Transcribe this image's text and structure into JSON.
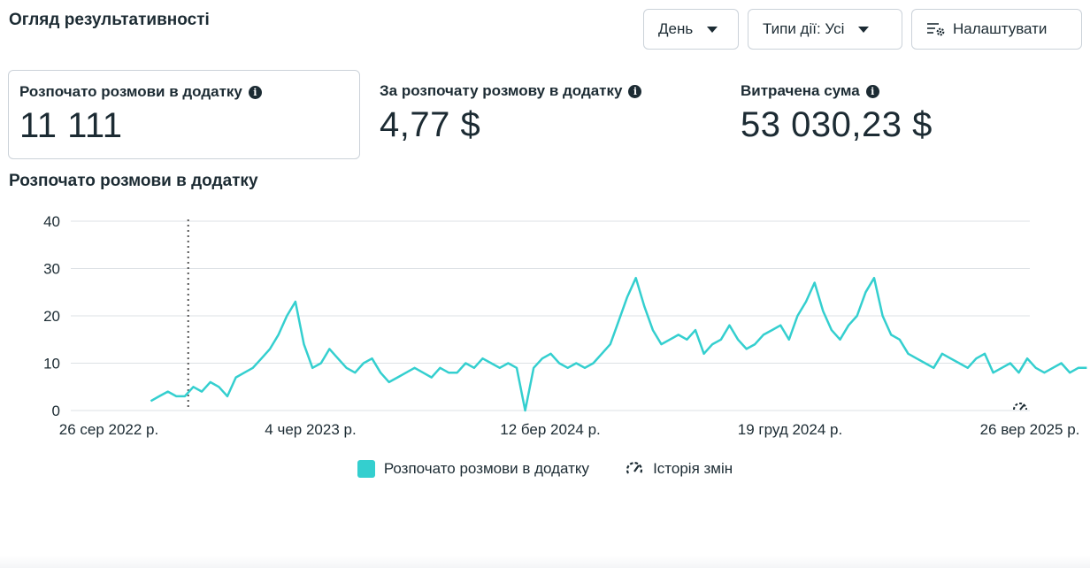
{
  "header": {
    "title": "Огляд результативності",
    "day_button": "День",
    "action_types_button": "Типи дії: Усі",
    "customize_button": "Налаштувати"
  },
  "metrics": [
    {
      "label": "Розпочато розмови в додатку",
      "value": "11 111"
    },
    {
      "label": "За розпочату розмову в додатку",
      "value": "4,77 $"
    },
    {
      "label": "Витрачена сума",
      "value": "53 030,23 $"
    }
  ],
  "chart_data": {
    "type": "line",
    "title": "Розпочато розмови в додатку",
    "x_ticks": [
      "26 сер 2022 р.",
      "4 чер 2023 р.",
      "12 бер 2024 р.",
      "19 груд 2024 р.",
      "26 вер 2025 р."
    ],
    "xlim": [
      "2022-08-26",
      "2025-09-26"
    ],
    "ylim": [
      0,
      40
    ],
    "y_ticks": [
      0,
      10,
      20,
      30,
      40
    ],
    "grid": true,
    "legend_position": "bottom",
    "marker_date": "2023-01-11",
    "series": [
      {
        "name": "Розпочато розмови в додатку",
        "color": "#34cfcf",
        "start_date": "2022-11-28",
        "interval": "10 days",
        "values": [
          2,
          3,
          4,
          3,
          3,
          5,
          4,
          6,
          5,
          3,
          7,
          8,
          9,
          11,
          13,
          16,
          20,
          23,
          14,
          9,
          10,
          13,
          11,
          9,
          8,
          10,
          11,
          8,
          6,
          7,
          8,
          9,
          8,
          7,
          9,
          8,
          8,
          10,
          9,
          11,
          10,
          9,
          10,
          9,
          0,
          9,
          11,
          12,
          10,
          9,
          10,
          9,
          10,
          12,
          14,
          19,
          24,
          28,
          22,
          17,
          14,
          15,
          16,
          15,
          17,
          12,
          14,
          15,
          18,
          15,
          13,
          14,
          16,
          17,
          18,
          15,
          20,
          23,
          27,
          21,
          17,
          15,
          18,
          20,
          25,
          28,
          20,
          16,
          15,
          12,
          11,
          10,
          9,
          12,
          11,
          10,
          9,
          11,
          12,
          8,
          9,
          10,
          8,
          11,
          9,
          8,
          9,
          10,
          8,
          9,
          9
        ]
      }
    ],
    "change_history_label": "Історія змін"
  }
}
